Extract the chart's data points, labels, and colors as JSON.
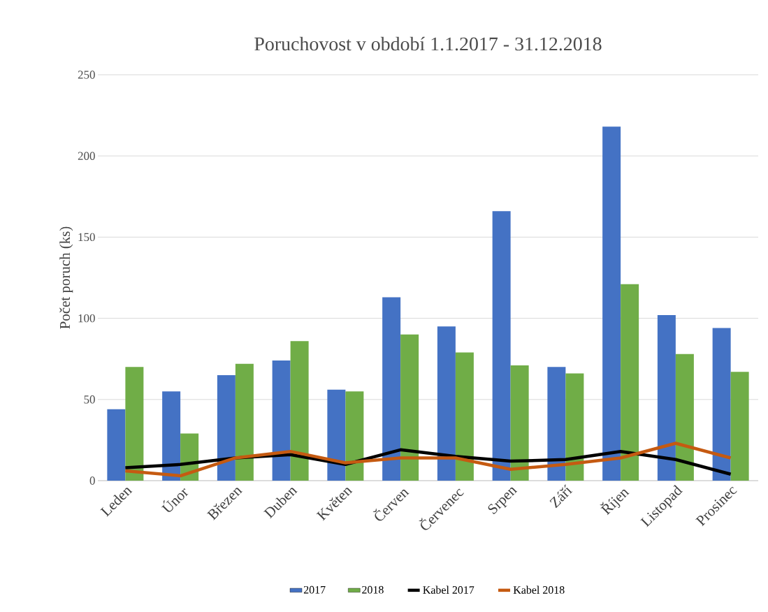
{
  "chart_data": {
    "type": "bar",
    "title": "Poruchovost v období 1.1.2017 - 31.12.2018",
    "ylabel": "Počet poruch (ks)",
    "categories": [
      "Leden",
      "Únor",
      "Březen",
      "Duben",
      "Květen",
      "Červen",
      "Červenec",
      "Srpen",
      "Září",
      "Říjen",
      "Listopad",
      "Prosinec"
    ],
    "series": [
      {
        "name": "2017",
        "color": "#4472c4",
        "values": [
          44,
          55,
          65,
          74,
          56,
          113,
          95,
          166,
          70,
          218,
          102,
          94
        ]
      },
      {
        "name": "2018",
        "color": "#70ad47",
        "values": [
          70,
          29,
          72,
          86,
          55,
          90,
          79,
          71,
          66,
          121,
          78,
          67
        ]
      },
      {
        "name": "Kabel 2017",
        "type": "line",
        "color": "#000000",
        "values": [
          8,
          10,
          14,
          16,
          10,
          19,
          15,
          12,
          13,
          18,
          13,
          4
        ]
      },
      {
        "name": "Kabel 2018",
        "type": "line",
        "color": "#c55a11",
        "values": [
          6,
          3,
          14,
          18,
          11,
          14,
          14,
          7,
          10,
          14,
          23,
          14
        ]
      }
    ],
    "ylim": [
      0,
      250
    ],
    "yticks": [
      0,
      50,
      100,
      150,
      200,
      250
    ],
    "grid": "y",
    "legend": "bottom"
  }
}
